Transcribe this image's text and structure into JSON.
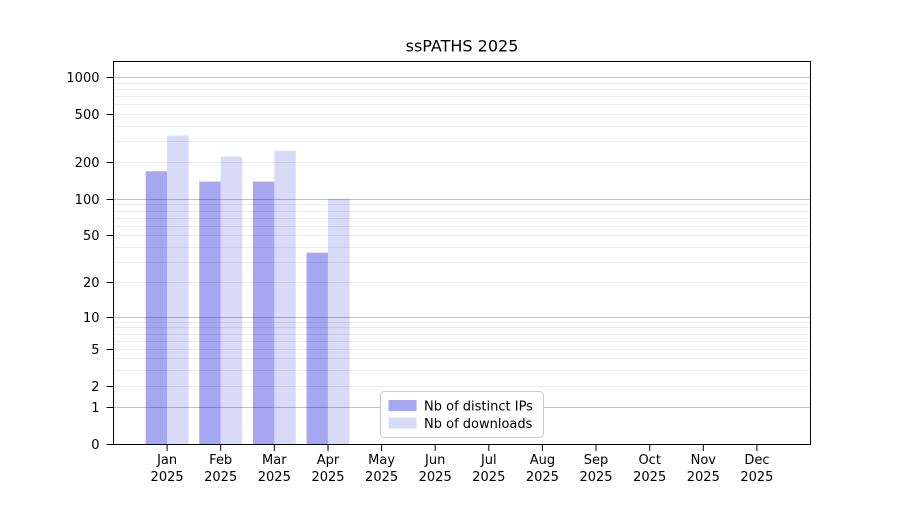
{
  "chart_data": {
    "type": "bar",
    "title": "ssPATHS 2025",
    "categories": [
      "Jan",
      "Feb",
      "Mar",
      "Apr",
      "May",
      "Jun",
      "Jul",
      "Aug",
      "Sep",
      "Oct",
      "Nov",
      "Dec"
    ],
    "year": "2025",
    "series": [
      {
        "name": "Nb of distinct IPs",
        "color": "#a6a6f1",
        "values": [
          170,
          140,
          140,
          36,
          0,
          0,
          0,
          0,
          0,
          0,
          0,
          0
        ]
      },
      {
        "name": "Nb of downloads",
        "color": "#d9d9f8",
        "values": [
          334,
          225,
          251,
          101,
          0,
          0,
          0,
          0,
          0,
          0,
          0,
          0
        ]
      }
    ],
    "y_scale": "log1p",
    "y_ticks": [
      0,
      1,
      2,
      5,
      10,
      20,
      50,
      100,
      200,
      500,
      1000
    ],
    "ylim": [
      0,
      1350
    ],
    "xlabel": "",
    "ylabel": "",
    "grid": "both",
    "legend_position": "lower center inside axes"
  }
}
